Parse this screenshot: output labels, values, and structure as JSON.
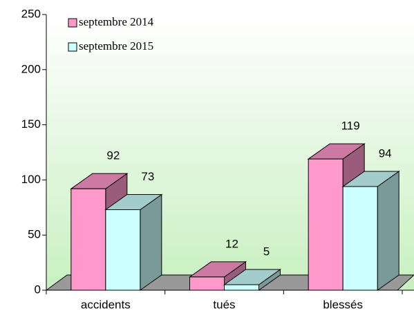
{
  "chart_data": {
    "type": "bar3d",
    "categories": [
      "accidents",
      "tués",
      "blessés"
    ],
    "series": [
      {
        "name": "septembre 2014",
        "color": "#ff99cc",
        "values": [
          92,
          12,
          119
        ]
      },
      {
        "name": "septembre 2015",
        "color": "#ccffff",
        "values": [
          73,
          5,
          94
        ]
      }
    ],
    "ylim": [
      0,
      250
    ],
    "yticks": [
      0,
      50,
      100,
      150,
      200,
      250
    ]
  }
}
